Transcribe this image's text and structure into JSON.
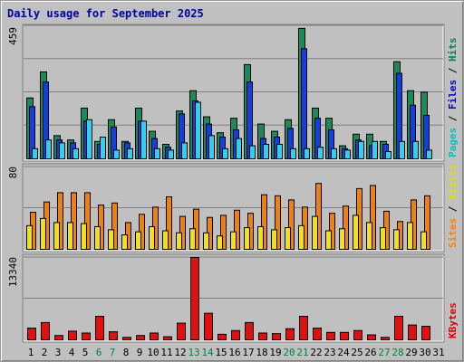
{
  "chart_data": {
    "type": "bar",
    "title": "Daily usage for September 2025",
    "categories": [
      "1",
      "2",
      "3",
      "4",
      "5",
      "6",
      "7",
      "8",
      "9",
      "10",
      "11",
      "12",
      "13",
      "14",
      "15",
      "16",
      "17",
      "18",
      "19",
      "20",
      "21",
      "22",
      "23",
      "24",
      "25",
      "26",
      "27",
      "28",
      "29",
      "30",
      "31"
    ],
    "weekend_days": [
      "6",
      "7",
      "13",
      "14",
      "20",
      "21",
      "27",
      "28"
    ],
    "colors": {
      "hits": "#1a8a5a",
      "files": "#1040e0",
      "pages": "#30d0f0",
      "visits": "#f0e020",
      "sites": "#f08010",
      "kbytes": "#e01010",
      "weekday_label": "#000000",
      "weekend_label": "#008040",
      "legend_pages": "#00c0c0",
      "legend_files": "#0000d0",
      "legend_hits": "#008060",
      "legend_sites": "#ff8000",
      "legend_visits": "#e0e000",
      "legend_kbytes": "#e00000",
      "title": "#0000a0"
    },
    "panels": [
      {
        "id": "hits-files-pages",
        "max_label": "459",
        "ymax": 459,
        "legend": [
          "Pages",
          "Files",
          "Hits"
        ],
        "series": [
          {
            "name": "Hits",
            "values": [
              210,
              300,
              80,
              65,
              175,
              60,
              135,
              60,
              175,
              95,
              50,
              165,
              235,
              145,
              90,
              140,
              325,
              120,
              95,
              135,
              450,
              175,
              140,
              45,
              85,
              85,
              60,
              335,
              235,
              230,
              0
            ]
          },
          {
            "name": "Files",
            "values": [
              180,
              265,
              65,
              55,
              130,
              50,
              110,
              55,
              130,
              70,
              40,
              155,
              200,
              120,
              75,
              100,
              265,
              70,
              75,
              105,
              380,
              140,
              100,
              35,
              65,
              45,
              50,
              295,
              185,
              150,
              0
            ]
          },
          {
            "name": "Pages",
            "values": [
              35,
              65,
              55,
              35,
              135,
              75,
              30,
              35,
              130,
              35,
              30,
              55,
              195,
              80,
              35,
              70,
              45,
              50,
              50,
              35,
              35,
              40,
              35,
              30,
              60,
              60,
              25,
              60,
              60,
              30,
              0
            ]
          }
        ]
      },
      {
        "id": "visits-sites",
        "max_label": "80",
        "ymax": 80,
        "legend": [
          "Sites",
          "Visits"
        ],
        "series": [
          {
            "name": "Sites",
            "values": [
              36,
              46,
              55,
              55,
              55,
              43,
              45,
              26,
              34,
              41,
              51,
              32,
              39,
              31,
              33,
              38,
              35,
              53,
              52,
              48,
              41,
              64,
              35,
              42,
              59,
              62,
              37,
              27,
              48,
              52,
              0
            ]
          },
          {
            "name": "Visits",
            "values": [
              23,
              30,
              26,
              26,
              25,
              22,
              19,
              14,
              17,
              22,
              18,
              16,
              20,
              16,
              13,
              17,
              21,
              22,
              19,
              21,
              23,
              32,
              18,
              20,
              33,
              26,
              21,
              19,
              26,
              17,
              0
            ]
          }
        ]
      },
      {
        "id": "kbytes",
        "max_label": "13340",
        "ymax": 13340,
        "legend": [
          "KBytes"
        ],
        "series": [
          {
            "name": "KBytes",
            "values": [
              1900,
              2800,
              700,
              1400,
              1100,
              3800,
              1300,
              400,
              700,
              1100,
              500,
              2700,
              13340,
              4300,
              900,
              1500,
              2800,
              1100,
              1000,
              1800,
              3800,
              1900,
              1200,
              1200,
              1500,
              800,
              400,
              3800,
              2400,
              2200,
              0
            ]
          }
        ]
      }
    ]
  }
}
